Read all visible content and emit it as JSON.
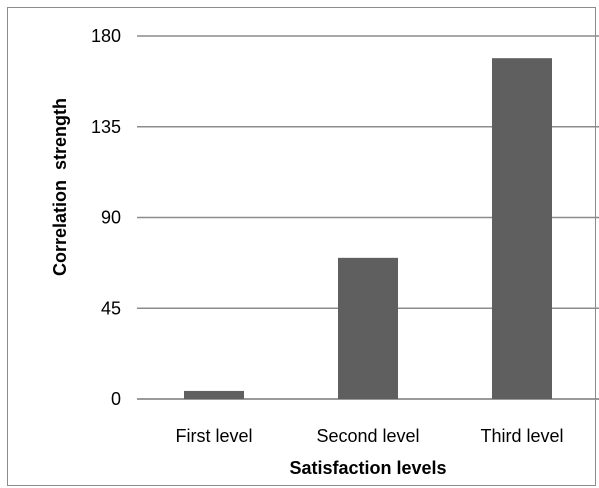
{
  "chart_data": {
    "type": "bar",
    "categories": [
      "First level",
      "Second level",
      "Third level"
    ],
    "values": [
      4,
      70,
      169
    ],
    "title": "",
    "xlabel": "Satisfaction levels",
    "ylabel": "Correlation  strength",
    "ylim": [
      0,
      180
    ],
    "yticks": [
      0,
      45,
      90,
      135,
      180
    ],
    "grid": true,
    "legend": "none",
    "bar_color": "#5f5f5f",
    "grid_color": "#8c8c8c"
  }
}
